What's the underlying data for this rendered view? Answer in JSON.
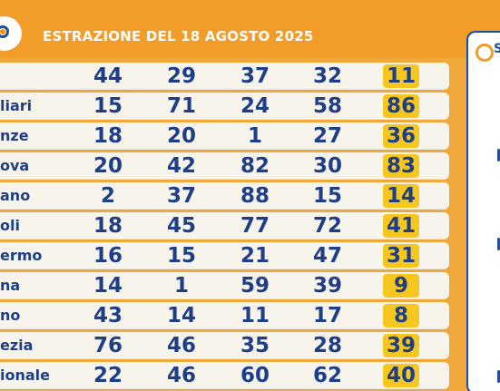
{
  "header": {
    "title": "ESTRAZIONE DEL 18 AGOSTO 2025"
  },
  "rows": [
    {
      "city": "",
      "nums": [
        "44",
        "29",
        "37",
        "32",
        "11"
      ]
    },
    {
      "city": "liari",
      "nums": [
        "15",
        "71",
        "24",
        "58",
        "86"
      ]
    },
    {
      "city": "nze",
      "nums": [
        "18",
        "20",
        "1",
        "27",
        "36"
      ]
    },
    {
      "city": "ova",
      "nums": [
        "20",
        "42",
        "82",
        "30",
        "83"
      ]
    },
    {
      "city": "ano",
      "nums": [
        "2",
        "37",
        "88",
        "15",
        "14"
      ]
    },
    {
      "city": "oli",
      "nums": [
        "18",
        "45",
        "77",
        "72",
        "41"
      ]
    },
    {
      "city": "ermo",
      "nums": [
        "16",
        "15",
        "21",
        "47",
        "31"
      ]
    },
    {
      "city": "na",
      "nums": [
        "14",
        "1",
        "59",
        "39",
        "9"
      ]
    },
    {
      "city": "no",
      "nums": [
        "43",
        "14",
        "11",
        "17",
        "8"
      ]
    },
    {
      "city": "ezia",
      "nums": [
        "76",
        "46",
        "35",
        "28",
        "39"
      ]
    },
    {
      "city": "ionale",
      "nums": [
        "22",
        "46",
        "60",
        "62",
        "40"
      ]
    }
  ],
  "side_panel": {
    "label": "S"
  },
  "colors": {
    "orange": "#f29c2a",
    "blue": "#1e3e86",
    "highlight": "#f6c81f"
  },
  "icons": {
    "logo": "lotto-logo-icon",
    "side_logo": "brand-logo-icon"
  }
}
